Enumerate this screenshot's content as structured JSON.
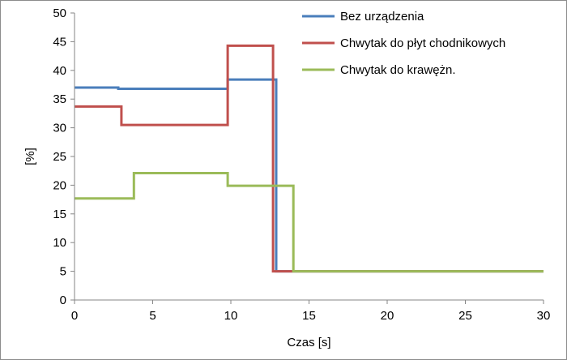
{
  "chart_data": {
    "type": "line",
    "title": "",
    "xlabel": "Czas [s]",
    "ylabel": "[%]",
    "xlim": [
      0,
      30
    ],
    "ylim": [
      0,
      50
    ],
    "x_ticks": [
      "0",
      "5",
      "10",
      "15",
      "20",
      "25",
      "30"
    ],
    "y_ticks": [
      "0",
      "5",
      "10",
      "15",
      "20",
      "25",
      "30",
      "35",
      "40",
      "45",
      "50"
    ],
    "grid": false,
    "legend_position": "top-right",
    "series": [
      {
        "name": "Bez urządzenia",
        "color": "#4a7ebb",
        "points": [
          [
            0,
            37.0
          ],
          [
            2.8,
            37.0
          ],
          [
            2.8,
            36.8
          ],
          [
            9.8,
            36.8
          ],
          [
            9.8,
            38.4
          ],
          [
            12.9,
            38.4
          ],
          [
            12.9,
            5.0
          ],
          [
            30,
            5.0
          ]
        ]
      },
      {
        "name": "Chwytak do płyt chodnikowych",
        "color": "#c0504d",
        "points": [
          [
            0,
            33.7
          ],
          [
            3.0,
            33.7
          ],
          [
            3.0,
            30.5
          ],
          [
            9.8,
            30.5
          ],
          [
            9.8,
            44.3
          ],
          [
            12.7,
            44.3
          ],
          [
            12.7,
            5.0
          ],
          [
            30,
            5.0
          ]
        ]
      },
      {
        "name": "Chwytak do krawężn.",
        "color": "#9bbb59",
        "points": [
          [
            0,
            17.7
          ],
          [
            3.8,
            17.7
          ],
          [
            3.8,
            22.1
          ],
          [
            9.8,
            22.1
          ],
          [
            9.8,
            19.9
          ],
          [
            14.0,
            19.9
          ],
          [
            14.0,
            5.0
          ],
          [
            30,
            5.0
          ]
        ]
      }
    ]
  }
}
